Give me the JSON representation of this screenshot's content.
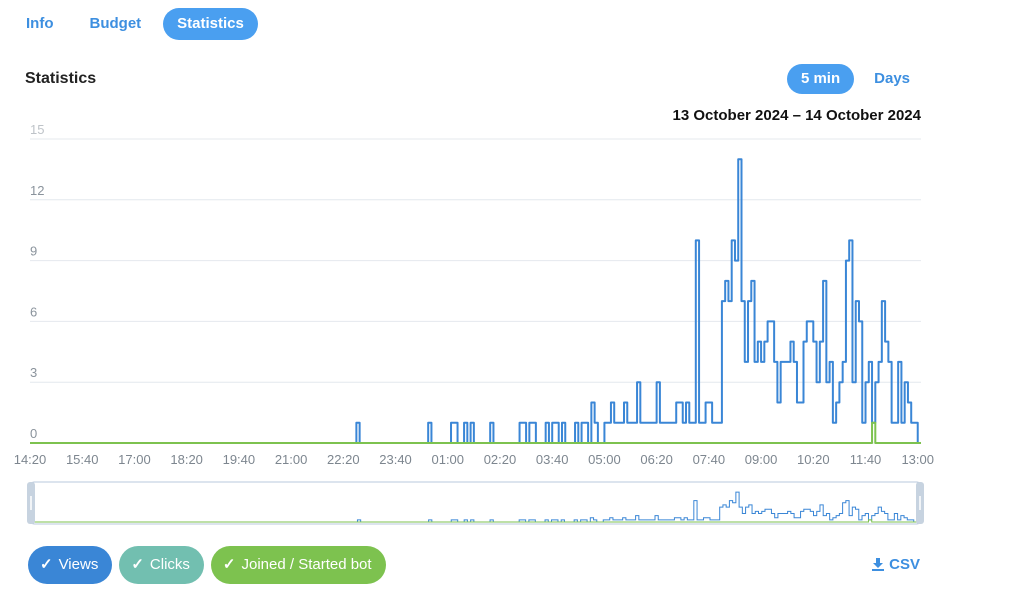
{
  "tabs": [
    {
      "label": "Info",
      "active": false
    },
    {
      "label": "Budget",
      "active": false
    },
    {
      "label": "Statistics",
      "active": true
    }
  ],
  "section_title": "Statistics",
  "scale_buttons": [
    {
      "label": "5 min",
      "active": true
    },
    {
      "label": "Days",
      "active": false
    }
  ],
  "date_range": "13 October 2024 – 14 October 2024",
  "csv_label": "CSV",
  "legend": [
    {
      "label": "Views",
      "color": "#3a86d6"
    },
    {
      "label": "Clicks",
      "color": "#72bfb0"
    },
    {
      "label": "Joined / Started bot",
      "color": "#7dc24f"
    }
  ],
  "chart_data": {
    "type": "line",
    "step": true,
    "x_start": "14:20",
    "x_interval_minutes": 5,
    "x_ticks": [
      "14:20",
      "15:40",
      "17:00",
      "18:20",
      "19:40",
      "21:00",
      "22:20",
      "23:40",
      "01:00",
      "02:20",
      "03:40",
      "05:00",
      "06:20",
      "07:40",
      "09:00",
      "10:20",
      "11:40",
      "13:00"
    ],
    "y_ticks": [
      0,
      3,
      6,
      9,
      12,
      15
    ],
    "ylim": [
      0,
      15
    ],
    "grid": true,
    "colors": {
      "views": "#3a86d6",
      "joined": "#7dc24f"
    },
    "series": [
      {
        "name": "Views",
        "events": [
          [
            100,
            1
          ],
          [
            122,
            1
          ],
          [
            129,
            1
          ],
          [
            130,
            1
          ],
          [
            133,
            1
          ],
          [
            135,
            1
          ],
          [
            141,
            1
          ],
          [
            150,
            1
          ],
          [
            151,
            1
          ],
          [
            153,
            1
          ],
          [
            154,
            1
          ],
          [
            158,
            1
          ],
          [
            160,
            1
          ],
          [
            161,
            1
          ],
          [
            163,
            1
          ],
          [
            167,
            1
          ],
          [
            169,
            1
          ],
          [
            170,
            1
          ],
          [
            172,
            2
          ],
          [
            173,
            1
          ],
          [
            176,
            1
          ],
          [
            177,
            1
          ],
          [
            178,
            2
          ],
          [
            179,
            1
          ],
          [
            180,
            1
          ],
          [
            181,
            1
          ],
          [
            182,
            2
          ],
          [
            183,
            1
          ],
          [
            184,
            1
          ],
          [
            185,
            1
          ],
          [
            186,
            3
          ],
          [
            187,
            1
          ],
          [
            188,
            1
          ],
          [
            189,
            1
          ],
          [
            190,
            1
          ],
          [
            191,
            1
          ],
          [
            192,
            3
          ],
          [
            193,
            1
          ],
          [
            194,
            1
          ],
          [
            195,
            1
          ],
          [
            196,
            1
          ],
          [
            197,
            1
          ],
          [
            198,
            2
          ],
          [
            199,
            2
          ],
          [
            200,
            1
          ],
          [
            201,
            2
          ],
          [
            202,
            1
          ],
          [
            203,
            1
          ],
          [
            204,
            10
          ],
          [
            205,
            1
          ],
          [
            206,
            1
          ],
          [
            207,
            2
          ],
          [
            208,
            2
          ],
          [
            209,
            1
          ],
          [
            210,
            1
          ],
          [
            211,
            1
          ],
          [
            212,
            7
          ],
          [
            213,
            8
          ],
          [
            214,
            7
          ],
          [
            215,
            10
          ],
          [
            216,
            9
          ],
          [
            217,
            14
          ],
          [
            218,
            7
          ],
          [
            219,
            4
          ],
          [
            220,
            7
          ],
          [
            221,
            8
          ],
          [
            222,
            4
          ],
          [
            223,
            5
          ],
          [
            224,
            4
          ],
          [
            225,
            5
          ],
          [
            226,
            6
          ],
          [
            227,
            6
          ],
          [
            228,
            4
          ],
          [
            229,
            2
          ],
          [
            230,
            4
          ],
          [
            231,
            4
          ],
          [
            232,
            4
          ],
          [
            233,
            5
          ],
          [
            234,
            4
          ],
          [
            235,
            2
          ],
          [
            236,
            2
          ],
          [
            237,
            5
          ],
          [
            238,
            6
          ],
          [
            239,
            6
          ],
          [
            240,
            5
          ],
          [
            241,
            3
          ],
          [
            242,
            5
          ],
          [
            243,
            8
          ],
          [
            244,
            3
          ],
          [
            245,
            4
          ],
          [
            246,
            1
          ],
          [
            247,
            2
          ],
          [
            248,
            3
          ],
          [
            249,
            4
          ],
          [
            250,
            9
          ],
          [
            251,
            10
          ],
          [
            252,
            3
          ],
          [
            253,
            7
          ],
          [
            254,
            6
          ],
          [
            255,
            1
          ],
          [
            256,
            3
          ],
          [
            257,
            4
          ],
          [
            258,
            1
          ],
          [
            259,
            3
          ],
          [
            260,
            4
          ],
          [
            261,
            7
          ],
          [
            262,
            5
          ],
          [
            263,
            4
          ],
          [
            264,
            1
          ],
          [
            265,
            1
          ],
          [
            266,
            4
          ],
          [
            267,
            1
          ],
          [
            268,
            3
          ],
          [
            269,
            2
          ],
          [
            270,
            1
          ],
          [
            271,
            1
          ]
        ]
      },
      {
        "name": "Clicks",
        "events": []
      },
      {
        "name": "Joined / Started bot",
        "events": [
          [
            258,
            1
          ]
        ]
      }
    ]
  }
}
